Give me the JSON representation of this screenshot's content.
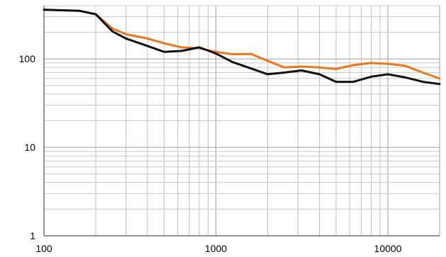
{
  "chart_data": {
    "type": "line",
    "x_scale": "log",
    "y_scale": "log",
    "xlim": [
      100,
      20000
    ],
    "ylim": [
      1,
      400
    ],
    "grid": true,
    "title": "",
    "xlabel": "",
    "ylabel": "",
    "x_tick_labels": [
      {
        "value": 100,
        "label": "100"
      },
      {
        "value": 1000,
        "label": "1000"
      },
      {
        "value": 10000,
        "label": "10000"
      }
    ],
    "y_tick_labels": [
      {
        "value": 1,
        "label": "1"
      },
      {
        "value": 10,
        "label": "10"
      },
      {
        "value": 100,
        "label": "100"
      }
    ],
    "series": [
      {
        "color": "#e8781e",
        "points": [
          [
            100,
            360
          ],
          [
            160,
            350
          ],
          [
            200,
            320
          ],
          [
            250,
            220
          ],
          [
            300,
            190
          ],
          [
            400,
            170
          ],
          [
            500,
            150
          ],
          [
            630,
            135
          ],
          [
            800,
            132
          ],
          [
            1000,
            120
          ],
          [
            1250,
            113
          ],
          [
            1600,
            114
          ],
          [
            2000,
            95
          ],
          [
            2500,
            80
          ],
          [
            3150,
            82
          ],
          [
            4000,
            80
          ],
          [
            5000,
            77
          ],
          [
            6300,
            85
          ],
          [
            8000,
            90
          ],
          [
            10000,
            88
          ],
          [
            12500,
            84
          ],
          [
            16000,
            70
          ],
          [
            20000,
            60
          ]
        ]
      },
      {
        "color": "#111111",
        "points": [
          [
            100,
            360
          ],
          [
            160,
            350
          ],
          [
            200,
            320
          ],
          [
            250,
            205
          ],
          [
            300,
            170
          ],
          [
            400,
            140
          ],
          [
            500,
            120
          ],
          [
            630,
            123
          ],
          [
            800,
            135
          ],
          [
            1000,
            115
          ],
          [
            1250,
            92
          ],
          [
            1600,
            78
          ],
          [
            2000,
            67
          ],
          [
            2500,
            70
          ],
          [
            3150,
            74
          ],
          [
            4000,
            67
          ],
          [
            5000,
            55
          ],
          [
            6300,
            55
          ],
          [
            8000,
            63
          ],
          [
            10000,
            67
          ],
          [
            12500,
            62
          ],
          [
            16000,
            55
          ],
          [
            20000,
            52
          ]
        ]
      }
    ]
  }
}
